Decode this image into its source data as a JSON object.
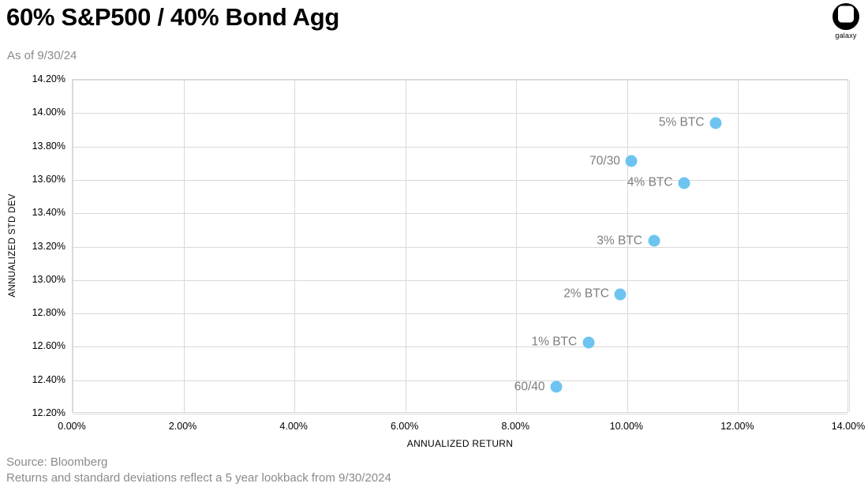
{
  "header": {
    "title": "60% S&P500 / 40% Bond Agg",
    "subtitle": "As of 9/30/24",
    "logo_text": "galaxy"
  },
  "footer": {
    "source": "Source: Bloomberg",
    "note": "Returns and standard deviations reflect a 5 year lookback from 9/30/2024"
  },
  "chart_data": {
    "type": "scatter",
    "xlabel": "ANNUALIZED RETURN",
    "ylabel": "ANNUALIZED STD DEV",
    "xlim": [
      0,
      14
    ],
    "ylim": [
      12.2,
      14.2
    ],
    "x_tick_values": [
      0,
      2,
      4,
      6,
      8,
      10,
      12,
      14
    ],
    "x_tick_labels": [
      "0.00%",
      "2.00%",
      "4.00%",
      "6.00%",
      "8.00%",
      "10.00%",
      "12.00%",
      "14.00%"
    ],
    "y_tick_values": [
      14.2,
      14.0,
      13.8,
      13.6,
      13.4,
      13.2,
      13.0,
      12.8,
      12.6,
      12.4,
      12.2
    ],
    "y_tick_labels": [
      "14.20%",
      "14.00%",
      "13.80%",
      "13.60%",
      "13.40%",
      "13.20%",
      "13.00%",
      "12.80%",
      "12.60%",
      "12.40%",
      "12.20%"
    ],
    "grid": true,
    "legend": "none",
    "point_color": "#6EC4F0",
    "point_label_color": "#7e7e7e",
    "grid_color": "#d9d9d9",
    "points": [
      {
        "label": "5% BTC",
        "x": 11.62,
        "y": 13.94
      },
      {
        "label": "70/30",
        "x": 10.1,
        "y": 13.71
      },
      {
        "label": "4% BTC",
        "x": 11.05,
        "y": 13.58
      },
      {
        "label": "3% BTC",
        "x": 10.5,
        "y": 13.23
      },
      {
        "label": "2% BTC",
        "x": 9.9,
        "y": 12.91
      },
      {
        "label": "1% BTC",
        "x": 9.32,
        "y": 12.62
      },
      {
        "label": "60/40",
        "x": 8.74,
        "y": 12.35
      }
    ]
  }
}
